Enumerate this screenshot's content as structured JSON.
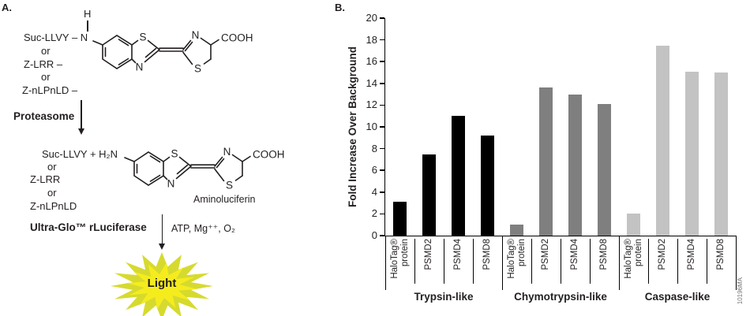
{
  "panel_a": {
    "label": "A.",
    "amine_h": "H",
    "substrates": [
      "Suc-LLVY – N",
      "or",
      "Z-LRR –",
      "or",
      "Z-nLPnLD –"
    ],
    "enzyme_step1": "Proteasome",
    "products": [
      "Suc-LLVY + H₂N",
      "or",
      "Z-LRR",
      "or",
      "Z-nLPnLD"
    ],
    "molecule_label": "Aminoluciferin",
    "enzyme_step2": "Ultra-Glo™ rLuciferase",
    "cofactors": "ATP, Mg⁺⁺, O₂",
    "light_label": "Light",
    "atoms": {
      "s_benzothiazole": "S",
      "n_benzothiazole": "N",
      "n_thiazoline": "N",
      "s_thiazoline": "S",
      "carboxyl": "COOH"
    },
    "colors": {
      "burst_outer": "#d6da2f",
      "burst_inner": "#f5ec1e",
      "ink": "#231f20"
    }
  },
  "panel_b": {
    "label": "B.",
    "watermark": "10196MA"
  },
  "chart_data": {
    "type": "bar",
    "title": "",
    "xlabel": "",
    "ylabel": "Fold Increase Over Background",
    "ylim": [
      0,
      20
    ],
    "ytick_step": 2,
    "grid": false,
    "legend": false,
    "categories": [
      [
        "HaloTag®",
        "protein"
      ],
      [
        "PSMD2"
      ],
      [
        "PSMD4"
      ],
      [
        "PSMD8"
      ]
    ],
    "series": [
      {
        "name": "Trypsin-like",
        "color": "#000000",
        "values": [
          3.1,
          7.5,
          11.0,
          9.2
        ]
      },
      {
        "name": "Chymotrypsin-like",
        "color": "#7f7f7f",
        "values": [
          1.0,
          13.6,
          13.0,
          12.1
        ]
      },
      {
        "name": "Caspase-like",
        "color": "#c3c3c3",
        "values": [
          2.0,
          17.5,
          15.1,
          15.0
        ]
      }
    ]
  }
}
